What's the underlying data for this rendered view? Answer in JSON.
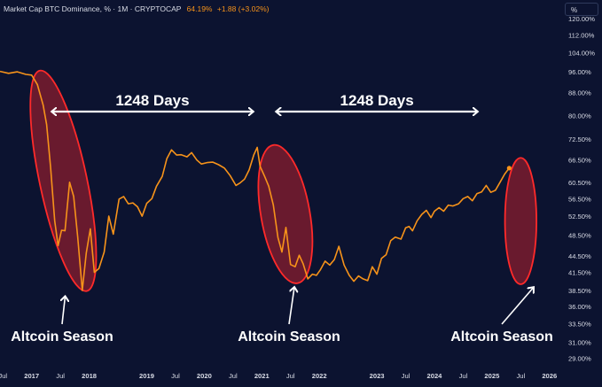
{
  "header": {
    "title": "Market Cap BTC Dominance, % · 1M · CRYPTOCAP",
    "price": "64.19%",
    "change": "+1.88 (+3.02%)"
  },
  "unit_button": "%",
  "colors": {
    "background": "#0c1330",
    "line": "#f7931a",
    "ellipse_fill": "#7a1c2e",
    "ellipse_stroke": "#ff2a2a",
    "annotation": "#ffffff",
    "axis_text": "#d9dce6"
  },
  "annotations": {
    "cycle_1": "1248 Days",
    "cycle_2": "1248 Days",
    "season_1": "Altcoin Season",
    "season_2": "Altcoin Season",
    "season_3": "Altcoin Season"
  },
  "chart_data": {
    "type": "line",
    "title": "",
    "xlabel": "",
    "ylabel": "",
    "ylog": true,
    "grid": false,
    "x_ticks": [
      "Jul",
      "2017",
      "Jul",
      "2018",
      "2019",
      "Jul",
      "2020",
      "Jul",
      "2021",
      "Jul",
      "2022",
      "2023",
      "Jul",
      "2024",
      "Jul",
      "2025",
      "Jul",
      "2026"
    ],
    "x_tick_values": [
      2016.5,
      2017.0,
      2017.5,
      2018.0,
      2019.0,
      2019.5,
      2020.0,
      2020.5,
      2021.0,
      2021.5,
      2022.0,
      2023.0,
      2023.5,
      2024.0,
      2024.5,
      2025.0,
      2025.5,
      2026.0
    ],
    "xlim": [
      2016.45,
      2026.25
    ],
    "y_ticks": [
      "120.00%",
      "112.00%",
      "104.00%",
      "96.00%",
      "88.00%",
      "80.00%",
      "72.50%",
      "66.50%",
      "60.50%",
      "56.50%",
      "52.50%",
      "48.50%",
      "44.50%",
      "41.50%",
      "38.50%",
      "36.00%",
      "33.50%",
      "31.00%",
      "29.00%"
    ],
    "y_tick_values": [
      120,
      112,
      104,
      96,
      88,
      80,
      72.5,
      66.5,
      60.5,
      56.5,
      52.5,
      48.5,
      44.5,
      41.5,
      38.5,
      36,
      33.5,
      31,
      29
    ],
    "ylim": [
      28.2,
      124
    ],
    "series": [
      {
        "values": [
          [
            2016.45,
            96.2
          ],
          [
            2016.6,
            95.4
          ],
          [
            2016.75,
            96.0
          ],
          [
            2016.9,
            95.0
          ],
          [
            2017.0,
            94.7
          ],
          [
            2017.1,
            91.0
          ],
          [
            2017.2,
            83.5
          ],
          [
            2017.26,
            77.0
          ],
          [
            2017.33,
            64.3
          ],
          [
            2017.4,
            51.5
          ],
          [
            2017.46,
            46.4
          ],
          [
            2017.52,
            49.5
          ],
          [
            2017.58,
            49.4
          ],
          [
            2017.66,
            60.5
          ],
          [
            2017.73,
            57.0
          ],
          [
            2017.8,
            48.2
          ],
          [
            2017.88,
            38.5
          ],
          [
            2017.95,
            45.0
          ],
          [
            2018.02,
            49.8
          ],
          [
            2018.09,
            41.5
          ],
          [
            2018.17,
            42.2
          ],
          [
            2018.26,
            45.2
          ],
          [
            2018.34,
            52.5
          ],
          [
            2018.42,
            48.7
          ],
          [
            2018.52,
            56.4
          ],
          [
            2018.6,
            57.0
          ],
          [
            2018.68,
            55.3
          ],
          [
            2018.76,
            55.5
          ],
          [
            2018.84,
            54.6
          ],
          [
            2018.92,
            52.5
          ],
          [
            2019.0,
            55.4
          ],
          [
            2019.09,
            56.5
          ],
          [
            2019.17,
            59.5
          ],
          [
            2019.27,
            62.0
          ],
          [
            2019.35,
            66.8
          ],
          [
            2019.43,
            69.3
          ],
          [
            2019.52,
            67.8
          ],
          [
            2019.6,
            67.9
          ],
          [
            2019.7,
            67.3
          ],
          [
            2019.78,
            68.5
          ],
          [
            2019.87,
            66.4
          ],
          [
            2019.95,
            65.3
          ],
          [
            2020.05,
            65.7
          ],
          [
            2020.15,
            65.8
          ],
          [
            2020.25,
            65.1
          ],
          [
            2020.35,
            64.2
          ],
          [
            2020.45,
            62.2
          ],
          [
            2020.55,
            59.7
          ],
          [
            2020.62,
            60.3
          ],
          [
            2020.7,
            61.3
          ],
          [
            2020.78,
            63.7
          ],
          [
            2020.86,
            67.8
          ],
          [
            2020.92,
            70.0
          ],
          [
            2020.97,
            64.7
          ],
          [
            2021.05,
            62.0
          ],
          [
            2021.12,
            59.5
          ],
          [
            2021.2,
            55.0
          ],
          [
            2021.28,
            48.0
          ],
          [
            2021.35,
            45.2
          ],
          [
            2021.42,
            50.1
          ],
          [
            2021.5,
            42.9
          ],
          [
            2021.58,
            42.5
          ],
          [
            2021.65,
            44.6
          ],
          [
            2021.72,
            43.0
          ],
          [
            2021.8,
            40.4
          ],
          [
            2021.88,
            41.2
          ],
          [
            2021.95,
            41.0
          ],
          [
            2022.02,
            42.0
          ],
          [
            2022.1,
            43.5
          ],
          [
            2022.18,
            42.8
          ],
          [
            2022.26,
            43.8
          ],
          [
            2022.34,
            46.3
          ],
          [
            2022.43,
            42.8
          ],
          [
            2022.52,
            41.0
          ],
          [
            2022.6,
            40.0
          ],
          [
            2022.68,
            40.9
          ],
          [
            2022.76,
            40.4
          ],
          [
            2022.84,
            40.1
          ],
          [
            2022.92,
            42.5
          ],
          [
            2023.0,
            41.2
          ],
          [
            2023.08,
            44.0
          ],
          [
            2023.16,
            44.7
          ],
          [
            2023.24,
            47.4
          ],
          [
            2023.32,
            48.1
          ],
          [
            2023.42,
            47.7
          ],
          [
            2023.5,
            50.0
          ],
          [
            2023.56,
            50.3
          ],
          [
            2023.62,
            49.4
          ],
          [
            2023.7,
            51.5
          ],
          [
            2023.78,
            52.9
          ],
          [
            2023.86,
            53.8
          ],
          [
            2023.94,
            52.2
          ],
          [
            2024.0,
            53.6
          ],
          [
            2024.08,
            54.4
          ],
          [
            2024.16,
            53.6
          ],
          [
            2024.24,
            55.0
          ],
          [
            2024.32,
            54.8
          ],
          [
            2024.42,
            55.3
          ],
          [
            2024.5,
            56.5
          ],
          [
            2024.58,
            57.0
          ],
          [
            2024.66,
            56.0
          ],
          [
            2024.74,
            57.7
          ],
          [
            2024.82,
            58.1
          ],
          [
            2024.9,
            59.7
          ],
          [
            2024.98,
            58.0
          ],
          [
            2025.06,
            58.5
          ],
          [
            2025.14,
            60.5
          ],
          [
            2025.22,
            62.6
          ],
          [
            2025.3,
            64.19
          ]
        ]
      }
    ],
    "last_value": 64.19,
    "highlighted_regions": [
      {
        "label": "Altcoin Season",
        "x_range": [
          2016.98,
          2018.12
        ],
        "y_range": [
          38.0,
          97.5
        ]
      },
      {
        "label": "Altcoin Season",
        "x_range": [
          2020.82,
          2022.0
        ],
        "y_range": [
          39.5,
          71.0
        ]
      },
      {
        "label": "Altcoin Season",
        "x_range": [
          2025.12,
          2025.88
        ],
        "y_range": [
          39.5,
          67.0
        ]
      }
    ]
  }
}
